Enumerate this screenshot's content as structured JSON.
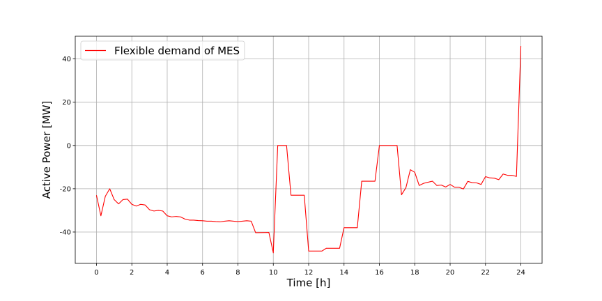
{
  "chart_data": {
    "type": "line",
    "title": "",
    "xlabel": "Time [h]",
    "ylabel": "Active Power [MW]",
    "xlim": [
      -1.2,
      25.2
    ],
    "ylim": [
      -54.5,
      50.5
    ],
    "xticks": [
      0,
      2,
      4,
      6,
      8,
      10,
      12,
      14,
      16,
      18,
      20,
      22,
      24
    ],
    "yticks": [
      -40,
      -20,
      0,
      20,
      40
    ],
    "grid": true,
    "legend_position": "top-left",
    "series": [
      {
        "name": "Flexible demand of MES",
        "color": "#ff0000",
        "x": [
          0,
          0.25,
          0.5,
          0.75,
          1.0,
          1.25,
          1.5,
          1.75,
          2.0,
          2.25,
          2.5,
          2.75,
          3.0,
          3.25,
          3.5,
          3.75,
          4.0,
          4.25,
          4.5,
          4.75,
          5.0,
          5.25,
          5.5,
          5.75,
          6.0,
          6.25,
          6.5,
          6.75,
          7.0,
          7.25,
          7.5,
          7.75,
          8.0,
          8.25,
          8.5,
          8.75,
          9.0,
          9.75,
          10.0,
          10.25,
          10.75,
          11.0,
          11.75,
          12.0,
          12.75,
          13.0,
          13.75,
          14.0,
          14.75,
          15.0,
          15.75,
          16.0,
          17.0,
          17.25,
          17.5,
          17.75,
          18.0,
          18.25,
          18.5,
          18.75,
          19.0,
          19.25,
          19.5,
          19.75,
          20.0,
          20.25,
          20.5,
          20.75,
          21.0,
          21.25,
          21.5,
          21.75,
          22.0,
          22.25,
          22.5,
          22.75,
          23.0,
          23.25,
          23.5,
          23.75,
          24.0
        ],
        "y": [
          -23,
          -32.5,
          -23.5,
          -20,
          -25,
          -27,
          -25,
          -24.8,
          -27.2,
          -28,
          -27.2,
          -27.5,
          -29.7,
          -30.3,
          -30,
          -30.3,
          -32.5,
          -33,
          -32.8,
          -33,
          -34,
          -34.5,
          -34.5,
          -34.7,
          -34.8,
          -35,
          -35,
          -35.2,
          -35.3,
          -35,
          -34.8,
          -35,
          -35.2,
          -35,
          -34.8,
          -35,
          -40.3,
          -40.2,
          -49.6,
          0,
          0,
          -23,
          -23,
          -48.8,
          -48.8,
          -47.5,
          -47.5,
          -38,
          -38,
          -16.5,
          -16.5,
          0,
          0,
          -22.8,
          -19.5,
          -11.2,
          -12.4,
          -18.5,
          -17.5,
          -17,
          -16.5,
          -18.5,
          -18.3,
          -19.2,
          -18,
          -19.3,
          -19.3,
          -20.1,
          -16.6,
          -17.2,
          -17.3,
          -18,
          -14.4,
          -15,
          -15.1,
          -15.8,
          -13.2,
          -13.8,
          -13.8,
          -14.3,
          46
        ]
      }
    ]
  }
}
